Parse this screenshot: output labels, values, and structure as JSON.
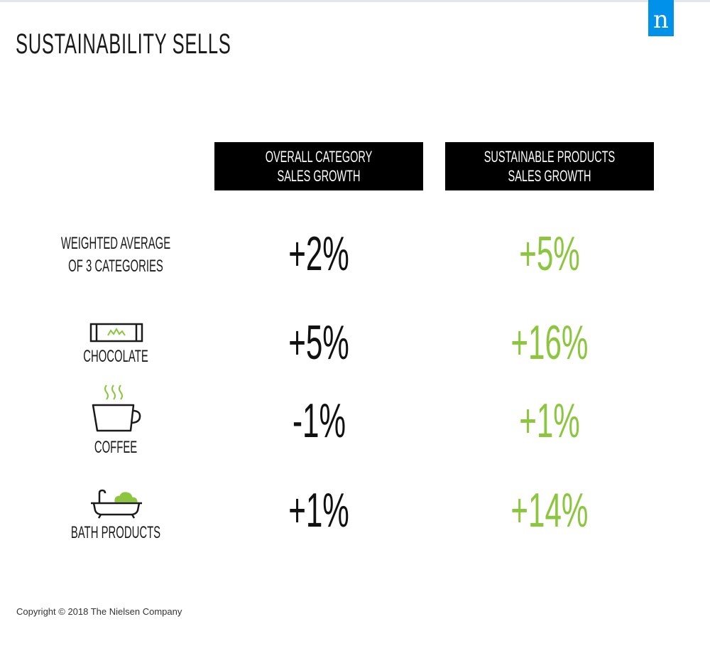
{
  "title": "SUSTAINABILITY SELLS",
  "logo": {
    "letter": "n",
    "color": "#0091ea"
  },
  "colors": {
    "overall": "#111111",
    "sustainable": "#8cc63e",
    "header_bg": "#000000"
  },
  "chart_data": {
    "type": "table",
    "title": "SUSTAINABILITY SELLS",
    "columns": [
      "OVERALL CATEGORY\nSALES GROWTH",
      "SUSTAINABLE PRODUCTS\nSALES GROWTH"
    ],
    "rows": [
      {
        "label": "WEIGHTED AVERAGE\nOF 3 CATEGORIES",
        "icon": "none",
        "overall": "+2%",
        "sustainable": "+5%"
      },
      {
        "label": "CHOCOLATE",
        "icon": "chocolate-bar-icon",
        "overall": "+5%",
        "sustainable": "+16%"
      },
      {
        "label": "COFFEE",
        "icon": "coffee-cup-icon",
        "overall": "-1%",
        "sustainable": "+1%"
      },
      {
        "label": "BATH PRODUCTS",
        "icon": "bathtub-icon",
        "overall": "+1%",
        "sustainable": "+14%"
      }
    ]
  },
  "footer": {
    "copyright": "Copyright © 2018 The Nielsen Company"
  }
}
